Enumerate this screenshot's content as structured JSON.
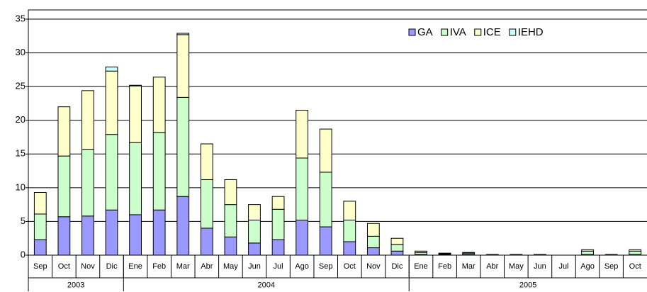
{
  "chart_data": {
    "type": "bar",
    "stacked": true,
    "category_groups": [
      {
        "label": "2003",
        "categories": [
          "Sep",
          "Oct",
          "Nov",
          "Dic"
        ]
      },
      {
        "label": "2004",
        "categories": [
          "Ene",
          "Feb",
          "Mar",
          "Abr",
          "May",
          "Jun",
          "Jul",
          "Ago",
          "Sep",
          "Oct",
          "Nov",
          "Dic"
        ]
      },
      {
        "label": "2005",
        "categories": [
          "Ene",
          "Feb",
          "Mar",
          "Abr",
          "May",
          "Jun",
          "Jul",
          "Ago",
          "Sep",
          "Oct"
        ]
      }
    ],
    "series": [
      {
        "name": "GA",
        "color": "#9999ff",
        "values": [
          2.3,
          5.7,
          5.8,
          6.7,
          6.0,
          6.7,
          8.7,
          4.0,
          2.7,
          1.8,
          2.3,
          5.2,
          4.2,
          2.0,
          1.1,
          0.6,
          0.1,
          0.1,
          0.1,
          0,
          0,
          0,
          0,
          0.1,
          0,
          0.1
        ]
      },
      {
        "name": "IVA",
        "color": "#ccffcc",
        "values": [
          3.8,
          9.0,
          9.9,
          11.2,
          10.7,
          11.5,
          14.7,
          7.2,
          4.8,
          3.4,
          4.5,
          9.2,
          8.1,
          3.2,
          1.7,
          1.0,
          0.3,
          0.1,
          0.2,
          0.1,
          0.1,
          0.1,
          0,
          0.5,
          0.1,
          0.5
        ]
      },
      {
        "name": "ICE",
        "color": "#ffffcc",
        "values": [
          3.2,
          7.3,
          8.7,
          9.4,
          8.4,
          8.2,
          9.3,
          5.3,
          3.7,
          2.3,
          1.9,
          7.1,
          6.4,
          2.8,
          1.9,
          0.9,
          0.2,
          0.1,
          0.1,
          0,
          0,
          0,
          0,
          0.2,
          0,
          0.2
        ]
      },
      {
        "name": "IEHD",
        "color": "#ccffff",
        "values": [
          0,
          0,
          0,
          0.6,
          0.1,
          0,
          0.2,
          0,
          0,
          0,
          0,
          0,
          0,
          0,
          0,
          0,
          0,
          0,
          0,
          0,
          0,
          0,
          0,
          0,
          0,
          0
        ]
      }
    ],
    "ylim": [
      0,
      35
    ],
    "yticks": [
      0,
      5,
      10,
      15,
      20,
      25,
      30,
      35
    ],
    "grid": true,
    "legend": "top-right"
  }
}
